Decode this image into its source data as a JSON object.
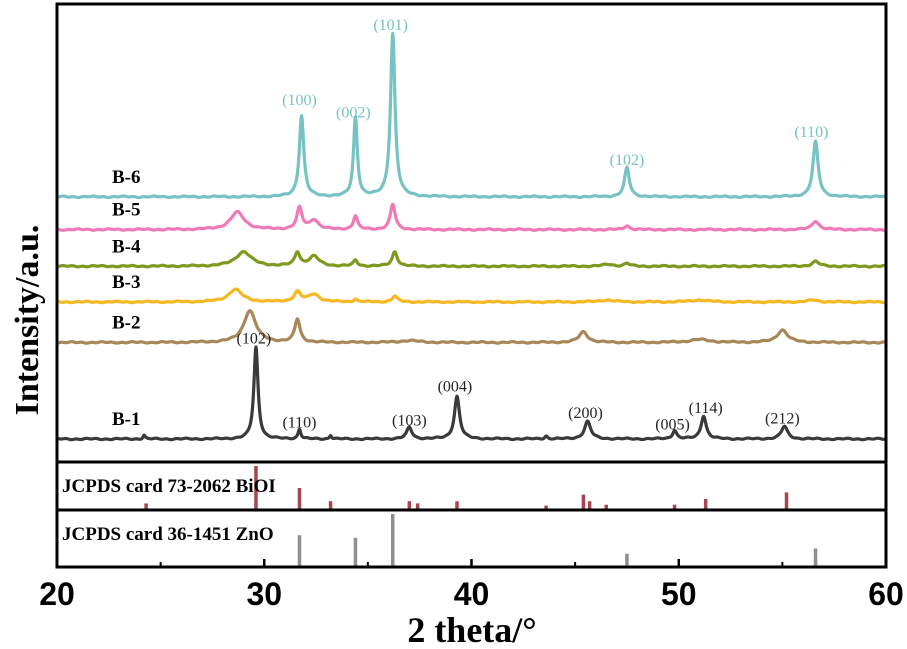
{
  "chart_data": {
    "type": "line",
    "xlabel": "2 theta/°",
    "ylabel": "Intensity/a.u.",
    "xlim": [
      20,
      60
    ],
    "x_ticks": [
      "20",
      "30",
      "40",
      "50",
      "60"
    ],
    "grid": false,
    "series": [
      {
        "name": "B-1",
        "color": "#3a3a3a",
        "baseline": 0,
        "peaks": [
          {
            "x": 24.2,
            "h": 0.4,
            "w": 0.06
          },
          {
            "x": 29.6,
            "h": 9.5,
            "w": 0.12
          },
          {
            "x": 31.7,
            "h": 1.0,
            "w": 0.08
          },
          {
            "x": 33.2,
            "h": 0.4,
            "w": 0.06
          },
          {
            "x": 37.0,
            "h": 1.2,
            "w": 0.15
          },
          {
            "x": 39.3,
            "h": 4.4,
            "w": 0.15
          },
          {
            "x": 43.6,
            "h": 0.3,
            "w": 0.08
          },
          {
            "x": 45.6,
            "h": 1.8,
            "w": 0.18
          },
          {
            "x": 49.8,
            "h": 0.9,
            "w": 0.12
          },
          {
            "x": 51.2,
            "h": 2.4,
            "w": 0.15
          },
          {
            "x": 55.1,
            "h": 1.3,
            "w": 0.18
          }
        ]
      },
      {
        "name": "B-2",
        "color": "#a88758",
        "baseline": 10,
        "peaks": [
          {
            "x": 29.3,
            "h": 3.3,
            "w": 0.35
          },
          {
            "x": 31.6,
            "h": 2.4,
            "w": 0.15
          },
          {
            "x": 37.0,
            "h": 0.2,
            "w": 0.5
          },
          {
            "x": 45.4,
            "h": 1.1,
            "w": 0.25
          },
          {
            "x": 51.0,
            "h": 0.3,
            "w": 0.6
          },
          {
            "x": 55.0,
            "h": 1.3,
            "w": 0.3
          }
        ]
      },
      {
        "name": "B-3",
        "color": "#f5b820",
        "baseline": 14.2,
        "peaks": [
          {
            "x": 28.6,
            "h": 1.3,
            "w": 0.4
          },
          {
            "x": 31.6,
            "h": 1.0,
            "w": 0.2
          },
          {
            "x": 32.4,
            "h": 0.8,
            "w": 0.3
          },
          {
            "x": 34.4,
            "h": 0.3,
            "w": 0.1
          },
          {
            "x": 36.3,
            "h": 0.6,
            "w": 0.15
          },
          {
            "x": 46.5,
            "h": 0.2,
            "w": 0.4
          },
          {
            "x": 51.0,
            "h": 0.2,
            "w": 0.5
          },
          {
            "x": 56.5,
            "h": 0.2,
            "w": 0.3
          }
        ]
      },
      {
        "name": "B-4",
        "color": "#7c9a1d",
        "baseline": 17.9,
        "peaks": [
          {
            "x": 29.0,
            "h": 1.5,
            "w": 0.45
          },
          {
            "x": 31.6,
            "h": 1.4,
            "w": 0.15
          },
          {
            "x": 32.4,
            "h": 1.0,
            "w": 0.3
          },
          {
            "x": 34.4,
            "h": 0.6,
            "w": 0.12
          },
          {
            "x": 36.3,
            "h": 1.5,
            "w": 0.15
          },
          {
            "x": 46.6,
            "h": 0.2,
            "w": 0.3
          },
          {
            "x": 47.5,
            "h": 0.3,
            "w": 0.15
          },
          {
            "x": 56.6,
            "h": 0.5,
            "w": 0.2
          }
        ]
      },
      {
        "name": "B-5",
        "color": "#f07ab5",
        "baseline": 21.7,
        "peaks": [
          {
            "x": 28.7,
            "h": 1.8,
            "w": 0.4
          },
          {
            "x": 31.7,
            "h": 2.2,
            "w": 0.15
          },
          {
            "x": 32.4,
            "h": 1.0,
            "w": 0.25
          },
          {
            "x": 34.4,
            "h": 1.4,
            "w": 0.12
          },
          {
            "x": 36.2,
            "h": 2.6,
            "w": 0.14
          },
          {
            "x": 47.5,
            "h": 0.4,
            "w": 0.15
          },
          {
            "x": 56.6,
            "h": 0.9,
            "w": 0.2
          }
        ]
      },
      {
        "name": "B-6",
        "color": "#76c2c4",
        "baseline": 25.1,
        "peaks": [
          {
            "x": 31.8,
            "h": 8.4,
            "w": 0.13
          },
          {
            "x": 34.4,
            "h": 8.2,
            "w": 0.11
          },
          {
            "x": 36.2,
            "h": 16.9,
            "w": 0.13
          },
          {
            "x": 47.5,
            "h": 3.0,
            "w": 0.14
          },
          {
            "x": 56.6,
            "h": 5.7,
            "w": 0.15
          }
        ]
      }
    ],
    "peak_labels": [
      {
        "series": "B-1",
        "text": "(102)",
        "x": 29.5,
        "y": 9.9
      },
      {
        "series": "B-1",
        "text": "(110)",
        "x": 31.7,
        "y": 1.2
      },
      {
        "series": "B-1",
        "text": "(103)",
        "x": 37.0,
        "y": 1.4
      },
      {
        "series": "B-1",
        "text": "(004)",
        "x": 39.2,
        "y": 4.9
      },
      {
        "series": "B-1",
        "text": "(200)",
        "x": 45.5,
        "y": 2.2
      },
      {
        "series": "B-1",
        "text": "(005)",
        "x": 49.7,
        "y": 1.0
      },
      {
        "series": "B-1",
        "text": "(114)",
        "x": 51.3,
        "y": 2.7
      },
      {
        "series": "B-1",
        "text": "(212)",
        "x": 55.0,
        "y": 1.6
      },
      {
        "series": "B-6",
        "text": "(100)",
        "x": 31.7,
        "y": 34.6
      },
      {
        "series": "B-6",
        "text": "(002)",
        "x": 34.3,
        "y": 33.3
      },
      {
        "series": "B-6",
        "text": "(101)",
        "x": 36.1,
        "y": 42.4
      },
      {
        "series": "B-6",
        "text": "(102)",
        "x": 47.5,
        "y": 28.4
      },
      {
        "series": "B-6",
        "text": "(110)",
        "x": 56.4,
        "y": 31.3
      }
    ],
    "reference_panels": [
      {
        "label": "JCPDS card 73-2062 BiOI",
        "color": "#a84550",
        "lines": [
          {
            "x": 24.3,
            "h": 0.15
          },
          {
            "x": 29.6,
            "h": 1.0
          },
          {
            "x": 31.7,
            "h": 0.5
          },
          {
            "x": 33.2,
            "h": 0.2
          },
          {
            "x": 37.0,
            "h": 0.2
          },
          {
            "x": 37.4,
            "h": 0.15
          },
          {
            "x": 39.3,
            "h": 0.2
          },
          {
            "x": 43.6,
            "h": 0.1
          },
          {
            "x": 45.4,
            "h": 0.35
          },
          {
            "x": 45.7,
            "h": 0.2
          },
          {
            "x": 46.5,
            "h": 0.12
          },
          {
            "x": 49.8,
            "h": 0.12
          },
          {
            "x": 51.3,
            "h": 0.25
          },
          {
            "x": 55.2,
            "h": 0.4
          }
        ]
      },
      {
        "label": "JCPDS card 36-1451 ZnO",
        "color": "#8f8f8f",
        "lines": [
          {
            "x": 31.7,
            "h": 0.6
          },
          {
            "x": 34.4,
            "h": 0.55
          },
          {
            "x": 36.2,
            "h": 1.0
          },
          {
            "x": 47.5,
            "h": 0.25
          },
          {
            "x": 56.6,
            "h": 0.35
          }
        ]
      }
    ]
  }
}
